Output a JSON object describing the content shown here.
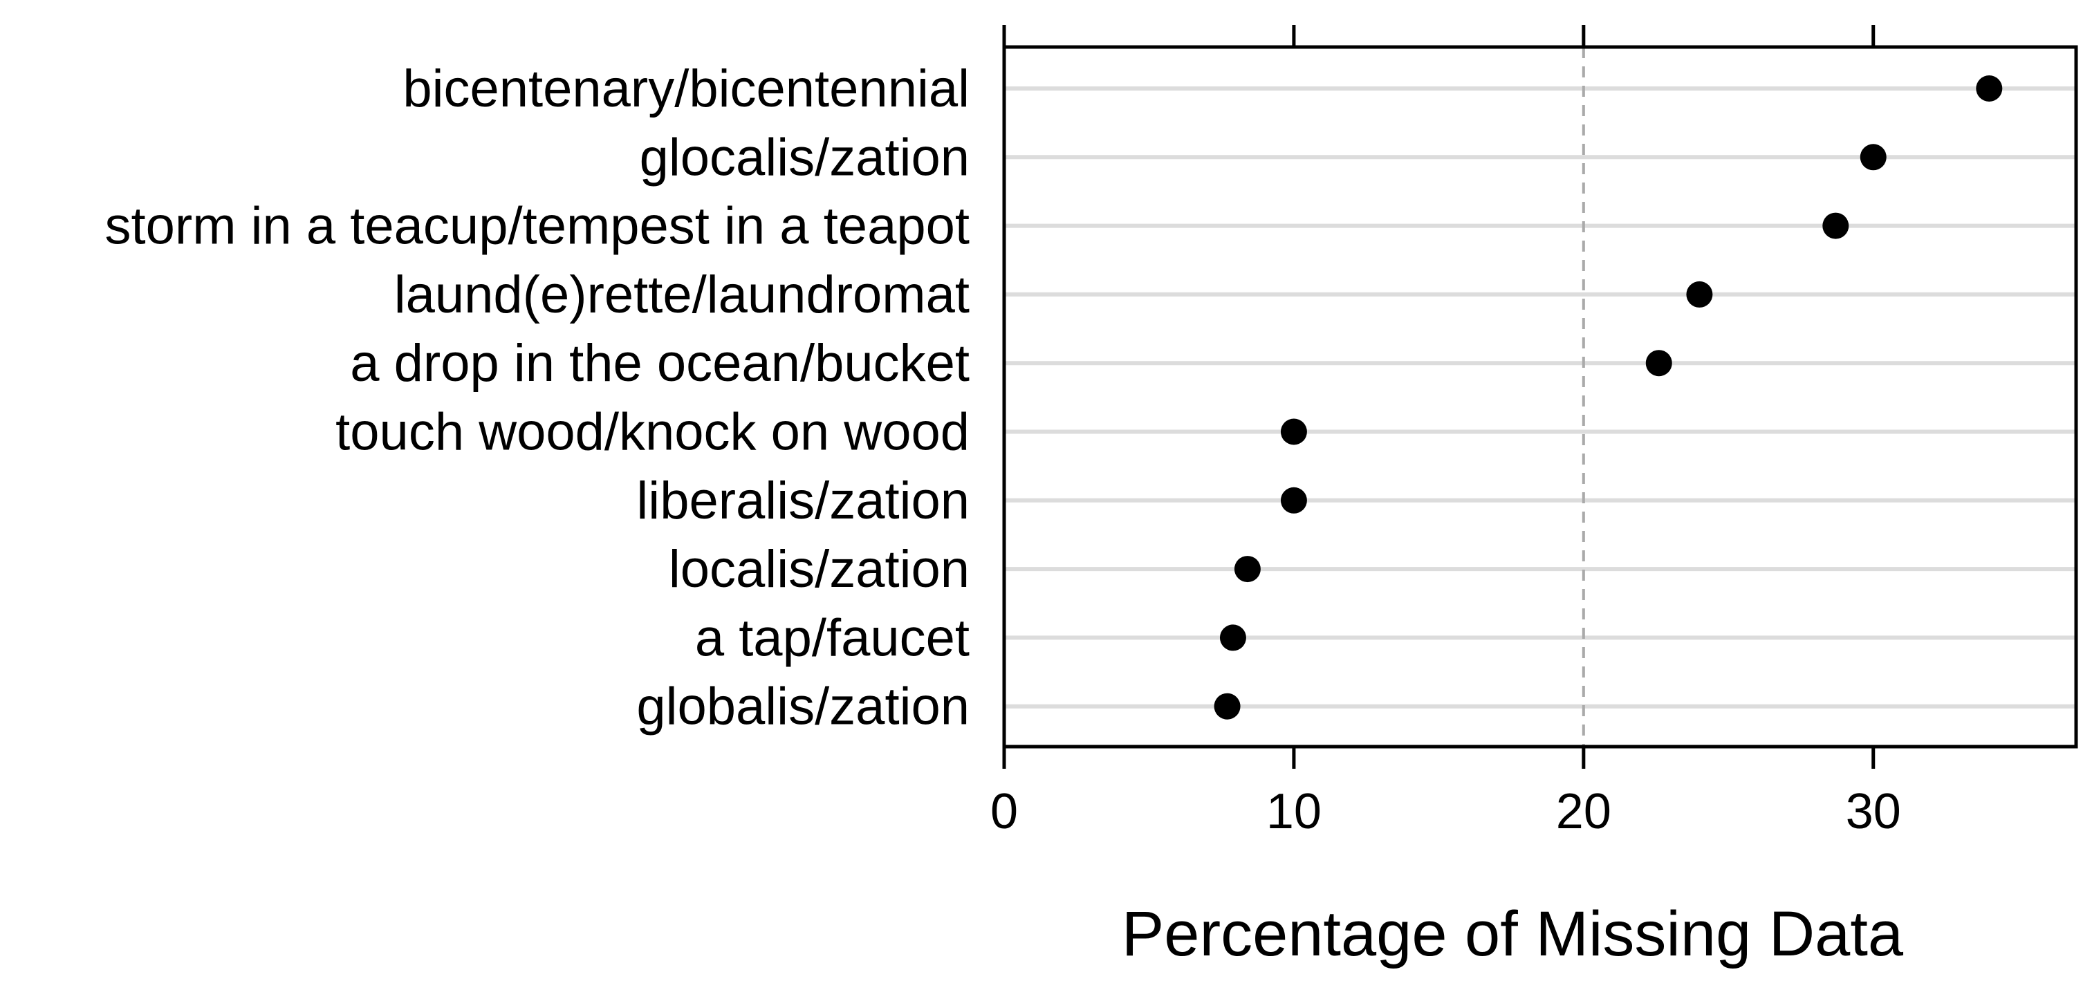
{
  "chart_data": {
    "type": "scatter",
    "orientation": "horizontal-dot-plot",
    "title": "",
    "xlabel": "Percentage of Missing Data",
    "ylabel": "",
    "xlim": [
      0,
      37
    ],
    "x_ticks": [
      0,
      10,
      20,
      30
    ],
    "x_tick_labels": [
      "0",
      "10",
      "20",
      "30"
    ],
    "x_ticks_on_top": true,
    "reference_line": {
      "x": 20,
      "style": "dashed",
      "color": "#aaaaaa"
    },
    "grid": "horizontal",
    "legend": "none",
    "categories": [
      "bicentenary/bicentennial",
      "glocalis/zation",
      "storm in a teacup/tempest in a teapot",
      "laund(e)rette/laundromat",
      "a drop in the ocean/bucket",
      "touch wood/knock on wood",
      "liberalis/zation",
      "localis/zation",
      "a tap/faucet",
      "globalis/zation"
    ],
    "values": [
      34.0,
      30.0,
      28.7,
      24.0,
      22.6,
      10.0,
      10.0,
      8.4,
      7.9,
      7.7
    ]
  },
  "colors": {
    "points": "#000000",
    "gridlines": "#dcdcdc",
    "frame": "#000000",
    "reference_line": "#aaaaaa"
  }
}
